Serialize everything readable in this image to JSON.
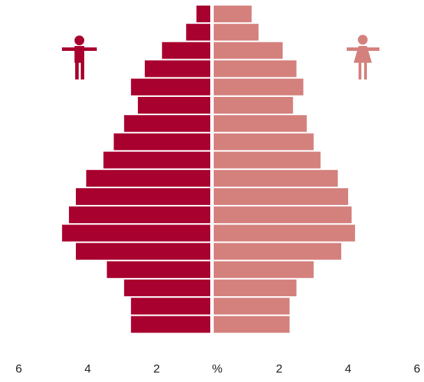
{
  "chart_data": {
    "type": "pyramid",
    "categories": [
      null,
      null,
      null,
      null,
      null,
      null,
      null,
      null,
      null,
      null,
      null,
      null,
      null,
      null,
      null,
      null,
      null,
      null
    ],
    "series": [
      {
        "side": "left",
        "color": "#a8002f",
        "values": [
          0.4,
          0.7,
          1.4,
          1.9,
          2.3,
          2.1,
          2.5,
          2.8,
          3.1,
          3.6,
          3.9,
          4.1,
          4.3,
          3.9,
          3.0,
          2.5,
          2.3,
          2.3
        ]
      },
      {
        "side": "right",
        "color": "#d4817e",
        "values": [
          1.1,
          1.3,
          2.0,
          2.4,
          2.6,
          2.3,
          2.7,
          2.9,
          3.1,
          3.6,
          3.9,
          4.0,
          4.1,
          3.7,
          2.9,
          2.4,
          2.2,
          2.2
        ]
      }
    ],
    "xlim": [
      -6,
      6
    ],
    "xticks": [
      {
        "value": -6,
        "label": "6"
      },
      {
        "value": -4,
        "label": "4"
      },
      {
        "value": -2,
        "label": "2"
      },
      {
        "value": 0,
        "label": "%"
      },
      2,
      4,
      6
    ]
  }
}
